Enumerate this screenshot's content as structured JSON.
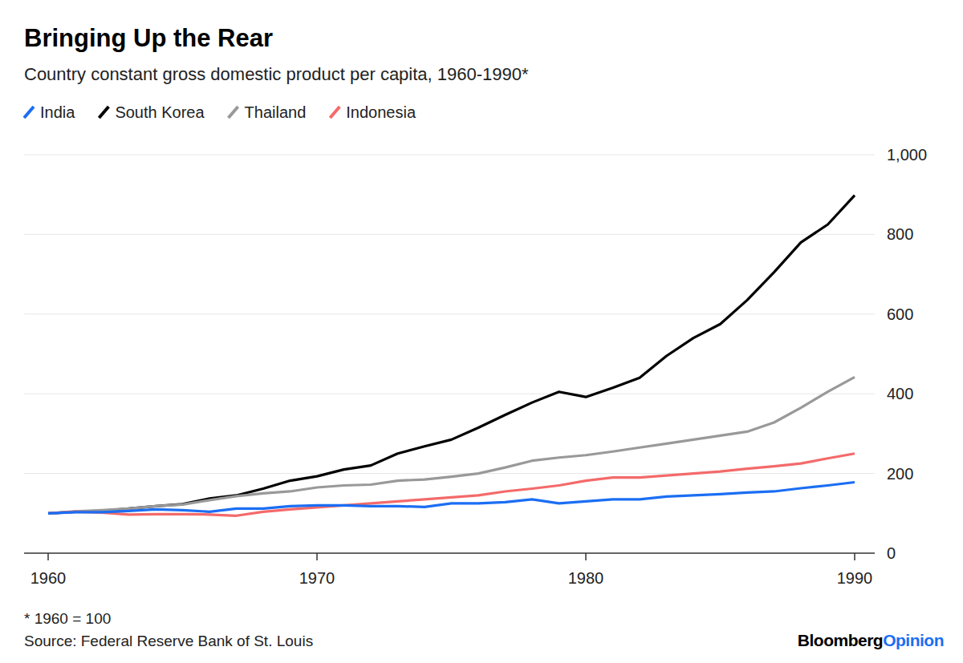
{
  "chart_data": {
    "type": "line",
    "title": "Bringing Up the Rear",
    "subtitle": "Country constant gross domestic product per capita, 1960-1990*",
    "footnote": "* 1960 = 100",
    "source": "Source: Federal Reserve Bank of St. Louis",
    "brand": "Bloomberg",
    "brand_accent": "Opinion",
    "x": [
      1960,
      1961,
      1962,
      1963,
      1964,
      1965,
      1966,
      1967,
      1968,
      1969,
      1970,
      1971,
      1972,
      1973,
      1974,
      1975,
      1976,
      1977,
      1978,
      1979,
      1980,
      1981,
      1982,
      1983,
      1984,
      1985,
      1986,
      1987,
      1988,
      1989,
      1990
    ],
    "xlim": [
      1960,
      1990
    ],
    "xticks": [
      1960,
      1970,
      1980,
      1990
    ],
    "ylim": [
      0,
      1000
    ],
    "yticks": [
      0,
      200,
      400,
      600,
      800,
      {
        "value": 1000,
        "label": "1,000"
      }
    ],
    "grid": true,
    "legend": "top-left",
    "series": [
      {
        "name": "India",
        "color": "#1b6ef3",
        "values": [
          100,
          103,
          103,
          106,
          110,
          108,
          104,
          112,
          112,
          118,
          120,
          120,
          118,
          118,
          116,
          125,
          125,
          128,
          135,
          125,
          130,
          135,
          135,
          142,
          145,
          148,
          152,
          155,
          163,
          170,
          178
        ]
      },
      {
        "name": "South Korea",
        "color": "#000000",
        "values": [
          100,
          104,
          106,
          112,
          118,
          123,
          137,
          145,
          162,
          182,
          193,
          210,
          220,
          250,
          268,
          285,
          315,
          347,
          378,
          405,
          392,
          415,
          440,
          495,
          540,
          575,
          635,
          705,
          780,
          825,
          898
        ]
      },
      {
        "name": "Thailand",
        "color": "#999999",
        "values": [
          100,
          105,
          108,
          112,
          118,
          122,
          133,
          143,
          150,
          155,
          165,
          170,
          172,
          182,
          185,
          192,
          200,
          215,
          232,
          240,
          246,
          255,
          265,
          275,
          285,
          295,
          305,
          328,
          365,
          405,
          442
        ]
      },
      {
        "name": "Indonesia",
        "color": "#f46a6a",
        "values": [
          100,
          104,
          102,
          97,
          98,
          98,
          97,
          94,
          104,
          110,
          115,
          120,
          125,
          130,
          135,
          140,
          145,
          155,
          162,
          170,
          182,
          190,
          190,
          195,
          200,
          205,
          212,
          218,
          225,
          238,
          250
        ]
      }
    ]
  }
}
